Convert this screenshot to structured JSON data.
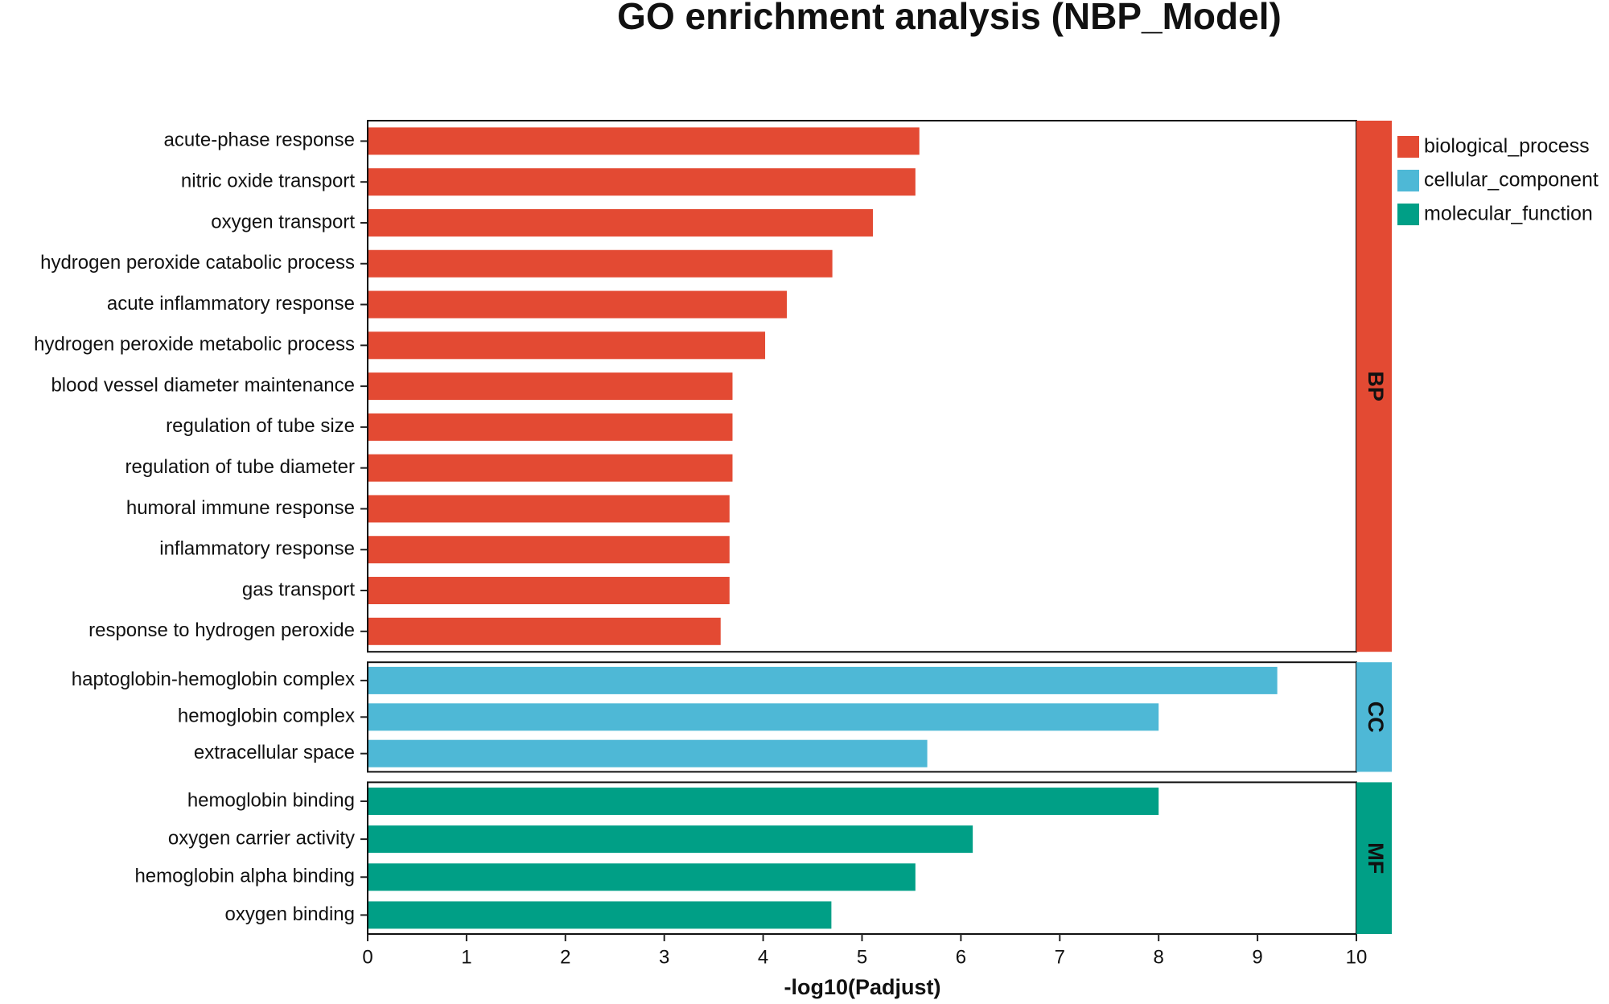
{
  "chart_data": {
    "type": "faceted-hbar",
    "title": "GO enrichment analysis (NBP_Model)",
    "x_label": "-log10(Padjust)",
    "xlim": [
      0,
      10
    ],
    "xticks": [
      0,
      1,
      2,
      3,
      4,
      5,
      6,
      7,
      8,
      9,
      10
    ],
    "groups": [
      {
        "name": "biological_process",
        "label": "BP",
        "color": "#e34a33",
        "categories": [
          "acute-phase response",
          "nitric oxide transport",
          "oxygen transport",
          "hydrogen peroxide catabolic process",
          "acute inflammatory response",
          "hydrogen peroxide metabolic process",
          "blood vessel diameter maintenance",
          "regulation of tube size",
          "regulation of tube diameter",
          "humoral immune response",
          "inflammatory response",
          "gas transport",
          "response to hydrogen peroxide"
        ],
        "values": [
          5.58,
          5.54,
          5.11,
          4.7,
          4.24,
          4.02,
          3.69,
          3.69,
          3.69,
          3.66,
          3.66,
          3.66,
          3.57
        ]
      },
      {
        "name": "cellular_component",
        "label": "CC",
        "color": "#4eb8d6",
        "categories": [
          "haptoglobin-hemoglobin complex",
          "hemoglobin complex",
          "extracellular space"
        ],
        "values": [
          9.2,
          8.0,
          5.66
        ]
      },
      {
        "name": "molecular_function",
        "label": "MF",
        "color": "#009f86",
        "categories": [
          "hemoglobin binding",
          "oxygen carrier activity",
          "hemoglobin alpha binding",
          "oxygen binding"
        ],
        "values": [
          8.0,
          6.12,
          5.54,
          4.69
        ]
      }
    ]
  }
}
